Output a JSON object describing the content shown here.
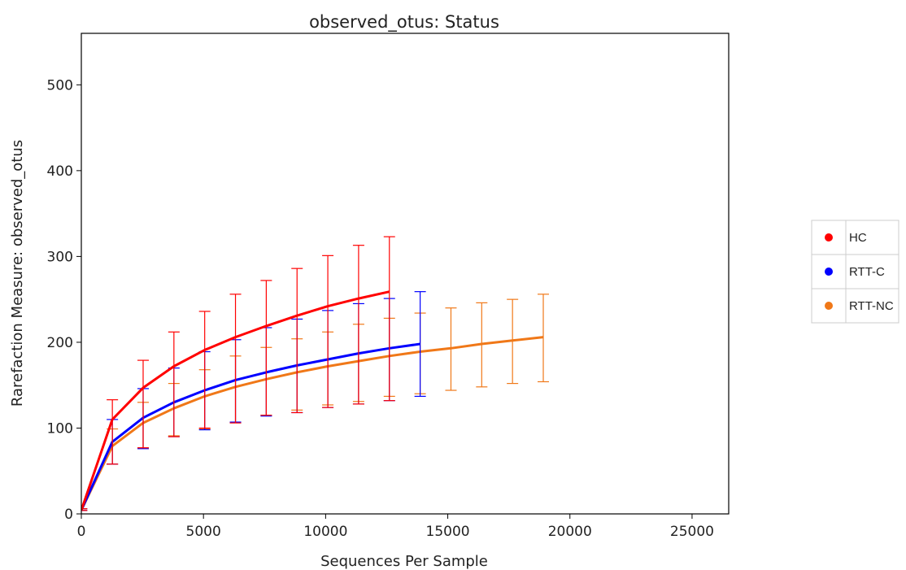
{
  "chart_data": {
    "type": "line",
    "title": "observed_otus: Status",
    "xlabel": "Sequences Per Sample",
    "ylabel": "Rarefaction Measure: observed_otus",
    "xlim": [
      0,
      26500
    ],
    "ylim": [
      0,
      560
    ],
    "xticks": [
      0,
      5000,
      10000,
      15000,
      20000,
      25000
    ],
    "xtick_labels": [
      "0",
      "5000",
      "10000",
      "15000",
      "20000",
      "25000"
    ],
    "yticks": [
      0,
      100,
      200,
      300,
      400,
      500
    ],
    "ytick_labels": [
      "0",
      "100",
      "200",
      "300",
      "400",
      "500"
    ],
    "grid": false,
    "legend_position": "outside-right",
    "series": [
      {
        "name": "HC",
        "color": "#ff0000",
        "x": [
          10,
          1270,
          2530,
          3790,
          5050,
          6310,
          7570,
          8830,
          10090,
          11350,
          12610
        ],
        "y": [
          5,
          110,
          147,
          172,
          191,
          206,
          219,
          231,
          242,
          251,
          259
        ],
        "err_low": [
          4,
          58,
          77,
          90,
          100,
          106,
          115,
          118,
          124,
          128,
          132
        ],
        "err_high": [
          6,
          133,
          179,
          212,
          236,
          256,
          272,
          286,
          301,
          313,
          323
        ]
      },
      {
        "name": "RTT-C",
        "color": "#0000ff",
        "x": [
          10,
          1270,
          2530,
          3790,
          5050,
          6310,
          7570,
          8830,
          10090,
          11350,
          12610,
          13870
        ],
        "y": [
          5,
          84,
          112,
          130,
          144,
          156,
          165,
          173,
          180,
          187,
          193,
          198
        ],
        "err_low": [
          4,
          58,
          76,
          90,
          98,
          107,
          114,
          118,
          124,
          128,
          132,
          137
        ],
        "err_high": [
          6,
          110,
          146,
          170,
          189,
          203,
          217,
          227,
          237,
          245,
          251,
          259
        ]
      },
      {
        "name": "RTT-NC",
        "color": "#f07818",
        "x": [
          10,
          1270,
          2530,
          3790,
          5050,
          6310,
          7570,
          8830,
          10090,
          11350,
          12610,
          13870,
          15130,
          16390,
          17650,
          18910
        ],
        "y": [
          5,
          79,
          106,
          123,
          137,
          148,
          157,
          165,
          172,
          178,
          184,
          189,
          193,
          198,
          202,
          206
        ],
        "err_low": [
          4,
          58,
          77,
          91,
          99,
          107,
          115,
          121,
          127,
          131,
          137,
          140,
          144,
          148,
          152,
          154
        ],
        "err_high": [
          6,
          99,
          130,
          152,
          168,
          184,
          194,
          204,
          212,
          221,
          228,
          234,
          240,
          246,
          250,
          256
        ]
      }
    ]
  }
}
